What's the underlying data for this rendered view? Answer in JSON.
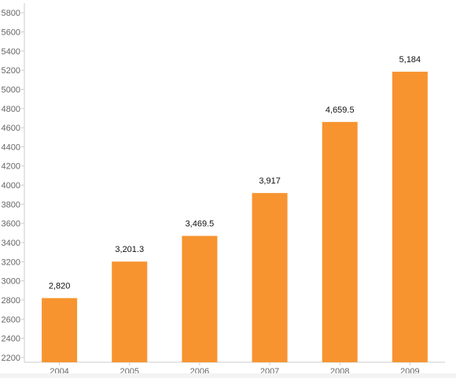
{
  "chart_data": {
    "type": "bar",
    "categories": [
      "2004",
      "2005",
      "2006",
      "2007",
      "2008",
      "2009"
    ],
    "values": [
      2820,
      3201.3,
      3469.5,
      3917,
      4659.5,
      5184
    ],
    "value_labels": [
      "2,820",
      "3,201.3",
      "3,469.5",
      "3,917",
      "4,659.5",
      "5,184"
    ],
    "yticks": [
      "2200",
      "2400",
      "2600",
      "2800",
      "3000",
      "3200",
      "3400",
      "3600",
      "3800",
      "4000",
      "4200",
      "4400",
      "4600",
      "4800",
      "5000",
      "5200",
      "5400",
      "5600",
      "5800"
    ],
    "ylim": [
      2150,
      5900
    ],
    "title": "",
    "xlabel": "",
    "ylabel": "",
    "grid": false,
    "legend": "none",
    "bar_color": "#f7942f",
    "axis_color": "#cccccc",
    "tick_label_color": "#666666",
    "value_label_color": "#111111"
  }
}
